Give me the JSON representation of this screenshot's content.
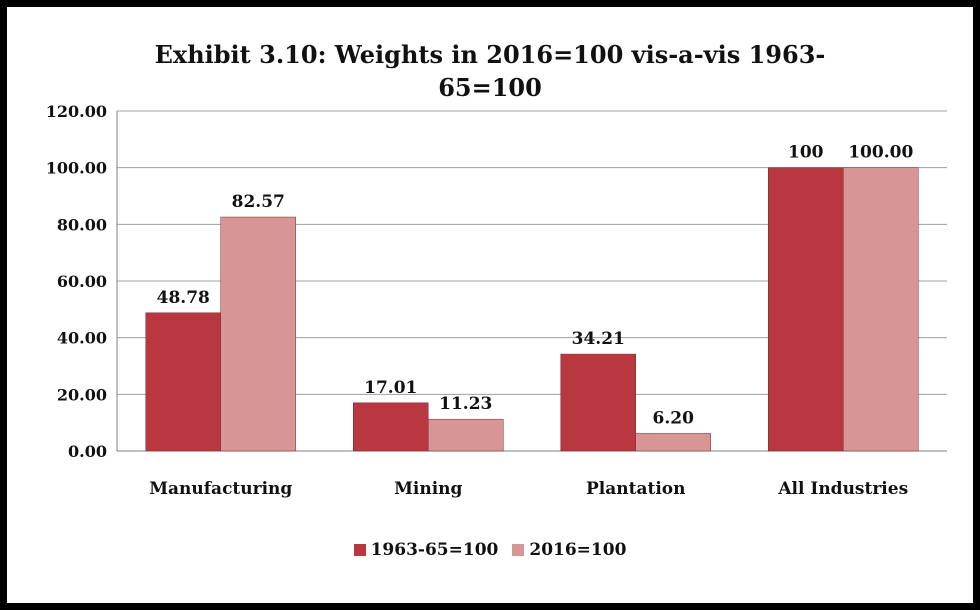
{
  "chart_data": {
    "type": "bar",
    "title_line1": "Exhibit 3.10: Weights in 2016=100 vis-a-vis 1963-",
    "title_line2": "65=100",
    "categories": [
      "Manufacturing",
      "Mining",
      "Plantation",
      "All Industries"
    ],
    "series": [
      {
        "name": "1963-65=100",
        "values": [
          48.78,
          17.01,
          34.21,
          100
        ],
        "labels": [
          "48.78",
          "17.01",
          "34.21",
          "100"
        ],
        "color": "#b9373f"
      },
      {
        "name": "2016=100",
        "values": [
          82.57,
          11.23,
          6.2,
          100.0
        ],
        "labels": [
          "82.57",
          "11.23",
          "6.20",
          "100.00"
        ],
        "color": "#d79596"
      }
    ],
    "ylim": [
      0,
      120
    ],
    "yticks": [
      "0.00",
      "20.00",
      "40.00",
      "60.00",
      "80.00",
      "100.00",
      "120.00"
    ],
    "grid": true,
    "legend_position": "bottom"
  }
}
